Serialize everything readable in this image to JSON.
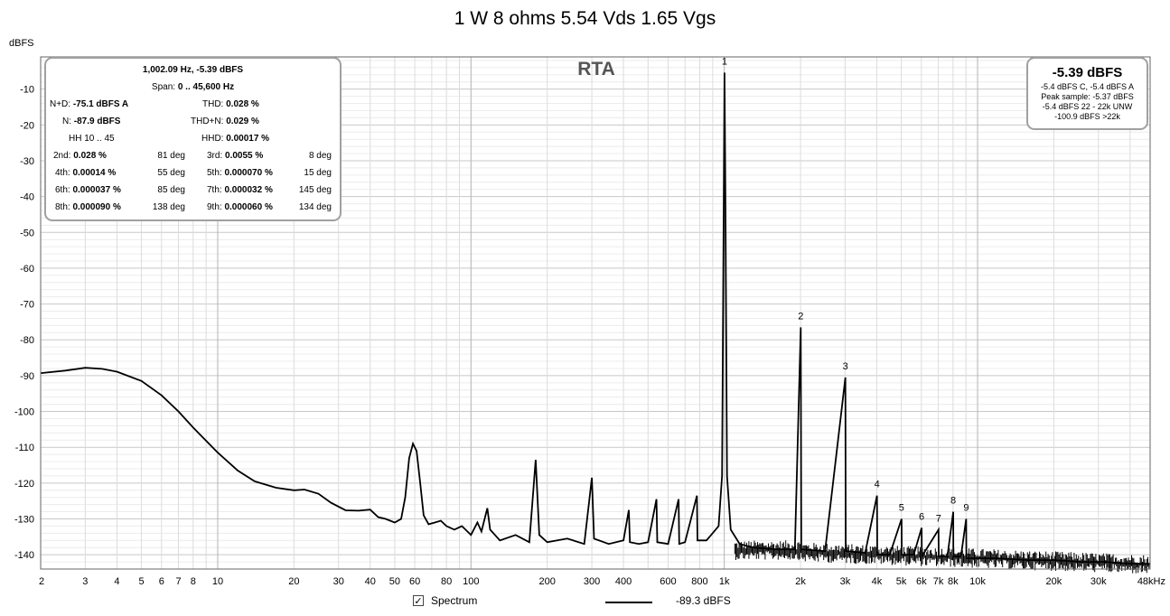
{
  "title": "1 W 8 ohms 5.54 Vds 1.65 Vgs",
  "y_unit": "dBFS",
  "rta_label": "RTA",
  "info": {
    "header": "1,002.09 Hz, -5.39 dBFS",
    "span": "0 .. 45,600 Hz",
    "span_label": "Span:",
    "nd_label": "N+D:",
    "nd": "-75.1 dBFS A",
    "thd_label": "THD:",
    "thd": "0.028 %",
    "n_label": "N:",
    "n": "-87.9 dBFS",
    "thdn_label": "THD+N:",
    "thdn": "0.029 %",
    "hh_label": "HH 10 .. 45",
    "hhd_label": "HHD:",
    "hhd": "0.00017 %",
    "harmonics": [
      {
        "l1": "2nd:",
        "v1": "0.028 %",
        "d1": "81 deg",
        "l2": "3rd:",
        "v2": "0.0055 %",
        "d2": "8 deg"
      },
      {
        "l1": "4th:",
        "v1": "0.00014 %",
        "d1": "55 deg",
        "l2": "5th:",
        "v2": "0.000070 %",
        "d2": "15 deg"
      },
      {
        "l1": "6th:",
        "v1": "0.000037 %",
        "d1": "85 deg",
        "l2": "7th:",
        "v2": "0.000032 %",
        "d2": "145 deg"
      },
      {
        "l1": "8th:",
        "v1": "0.000090 %",
        "d1": "138 deg",
        "l2": "9th:",
        "v2": "0.000060 %",
        "d2": "134 deg"
      }
    ]
  },
  "level": {
    "main": "-5.39 dBFS",
    "lines": [
      "-5.4 dBFS C, -5.4 dBFS A",
      "Peak sample: -5.37 dBFS",
      "-5.4 dBFS 22 - 22k UNW",
      "-100.9 dBFS >22k"
    ]
  },
  "legend": {
    "checkbox_mark": "✓",
    "series_label": "Spectrum",
    "series_value": "-89.3 dBFS"
  },
  "chart_data": {
    "type": "line",
    "xscale": "log",
    "xlim": [
      2,
      48000
    ],
    "ylim": [
      -144,
      -1
    ],
    "grid": true,
    "x_ticks": [
      {
        "v": 2,
        "l": "2"
      },
      {
        "v": 3,
        "l": "3"
      },
      {
        "v": 4,
        "l": "4"
      },
      {
        "v": 5,
        "l": "5"
      },
      {
        "v": 6,
        "l": "6"
      },
      {
        "v": 7,
        "l": "7"
      },
      {
        "v": 8,
        "l": "8"
      },
      {
        "v": 10,
        "l": "10"
      },
      {
        "v": 20,
        "l": "20"
      },
      {
        "v": 30,
        "l": "30"
      },
      {
        "v": 40,
        "l": "40"
      },
      {
        "v": 50,
        "l": "50"
      },
      {
        "v": 60,
        "l": "60"
      },
      {
        "v": 80,
        "l": "80"
      },
      {
        "v": 100,
        "l": "100"
      },
      {
        "v": 200,
        "l": "200"
      },
      {
        "v": 300,
        "l": "300"
      },
      {
        "v": 400,
        "l": "400"
      },
      {
        "v": 600,
        "l": "600"
      },
      {
        "v": 800,
        "l": "800"
      },
      {
        "v": 1000,
        "l": "1k"
      },
      {
        "v": 2000,
        "l": "2k"
      },
      {
        "v": 3000,
        "l": "3k"
      },
      {
        "v": 4000,
        "l": "4k"
      },
      {
        "v": 5000,
        "l": "5k"
      },
      {
        "v": 6000,
        "l": "6k"
      },
      {
        "v": 7000,
        "l": "7k"
      },
      {
        "v": 8000,
        "l": "8k"
      },
      {
        "v": 10000,
        "l": "10k"
      },
      {
        "v": 20000,
        "l": "20k"
      },
      {
        "v": 30000,
        "l": "30k"
      },
      {
        "v": 48000,
        "l": "48kHz"
      }
    ],
    "y_ticks": [
      -10,
      -20,
      -30,
      -40,
      -50,
      -60,
      -70,
      -80,
      -90,
      -100,
      -110,
      -120,
      -130,
      -140
    ],
    "series": [
      {
        "values": [
          [
            2,
            -89.3
          ],
          [
            2.5,
            -88.6
          ],
          [
            3,
            -87.8
          ],
          [
            3.5,
            -88.1
          ],
          [
            4,
            -88.9
          ],
          [
            5,
            -91.5
          ],
          [
            6,
            -95.5
          ],
          [
            7,
            -100
          ],
          [
            8,
            -104.5
          ],
          [
            10,
            -111.5
          ],
          [
            12,
            -116.5
          ],
          [
            14,
            -119.5
          ],
          [
            17,
            -121.3
          ],
          [
            20,
            -122
          ],
          [
            22,
            -121.8
          ],
          [
            25,
            -123
          ],
          [
            28,
            -125.5
          ],
          [
            32,
            -127.6
          ],
          [
            36,
            -127.7
          ],
          [
            40,
            -127.4
          ],
          [
            43,
            -129.5
          ],
          [
            46,
            -130
          ],
          [
            50,
            -131
          ],
          [
            53,
            -130
          ],
          [
            55,
            -124
          ],
          [
            57,
            -113
          ],
          [
            59,
            -109
          ],
          [
            61,
            -111
          ],
          [
            63,
            -120
          ],
          [
            65,
            -129
          ],
          [
            68,
            -131.5
          ],
          [
            72,
            -131
          ],
          [
            76,
            -130.5
          ],
          [
            80,
            -132
          ],
          [
            86,
            -133
          ],
          [
            92,
            -132
          ],
          [
            100,
            -134.5
          ],
          [
            106,
            -131
          ],
          [
            110,
            -133.5
          ],
          [
            116,
            -127
          ],
          [
            119,
            -133
          ],
          [
            130,
            -136
          ],
          [
            150,
            -134.5
          ],
          [
            170,
            -136.5
          ],
          [
            180,
            -113.5
          ],
          [
            186,
            -134.5
          ],
          [
            200,
            -136.5
          ],
          [
            240,
            -135.5
          ],
          [
            280,
            -137
          ],
          [
            300,
            -118.5
          ],
          [
            306,
            -135.5
          ],
          [
            350,
            -137
          ],
          [
            400,
            -136
          ],
          [
            420,
            -127.5
          ],
          [
            424,
            -136.5
          ],
          [
            460,
            -137
          ],
          [
            500,
            -136.5
          ],
          [
            540,
            -124.5
          ],
          [
            544,
            -136.5
          ],
          [
            600,
            -137
          ],
          [
            660,
            -124.5
          ],
          [
            664,
            -137
          ],
          [
            700,
            -136.5
          ],
          [
            780,
            -123.5
          ],
          [
            784,
            -136
          ],
          [
            850,
            -136
          ],
          [
            900,
            -134
          ],
          [
            950,
            -132
          ],
          [
            980,
            -118
          ],
          [
            995,
            -40
          ],
          [
            1002,
            -5.39
          ],
          [
            1010,
            -40
          ],
          [
            1025,
            -118
          ],
          [
            1060,
            -133
          ],
          [
            1150,
            -137
          ],
          [
            1300,
            -138
          ],
          [
            1600,
            -138.5
          ],
          [
            1900,
            -138.5
          ],
          [
            2004,
            -76.5
          ],
          [
            2014,
            -138.5
          ],
          [
            2500,
            -139
          ],
          [
            3006,
            -90.5
          ],
          [
            3016,
            -139
          ],
          [
            3600,
            -139.5
          ],
          [
            4008,
            -123.5
          ],
          [
            4018,
            -140
          ],
          [
            4500,
            -140
          ],
          [
            5010,
            -130
          ],
          [
            5020,
            -140
          ],
          [
            5600,
            -140
          ],
          [
            6012,
            -132.5
          ],
          [
            6022,
            -140.5
          ],
          [
            7014,
            -133
          ],
          [
            7024,
            -140.5
          ],
          [
            7600,
            -140.5
          ],
          [
            8016,
            -128
          ],
          [
            8026,
            -140.5
          ],
          [
            8600,
            -140.5
          ],
          [
            9018,
            -130
          ],
          [
            9028,
            -141
          ],
          [
            12000,
            -141
          ],
          [
            16000,
            -141.5
          ],
          [
            20000,
            -141.5
          ],
          [
            26000,
            -142
          ],
          [
            32000,
            -142
          ],
          [
            40000,
            -142.5
          ],
          [
            48000,
            -142.5
          ]
        ]
      }
    ],
    "peak_labels": [
      {
        "n": "1",
        "x": 1002,
        "y": -5.39
      },
      {
        "n": "2",
        "x": 2004,
        "y": -76.5
      },
      {
        "n": "3",
        "x": 3006,
        "y": -90.5
      },
      {
        "n": "4",
        "x": 4008,
        "y": -123.5
      },
      {
        "n": "5",
        "x": 5010,
        "y": -130
      },
      {
        "n": "6",
        "x": 6012,
        "y": -132.5
      },
      {
        "n": "7",
        "x": 7014,
        "y": -133
      },
      {
        "n": "8",
        "x": 8016,
        "y": -128
      },
      {
        "n": "9",
        "x": 9018,
        "y": -130
      }
    ]
  }
}
